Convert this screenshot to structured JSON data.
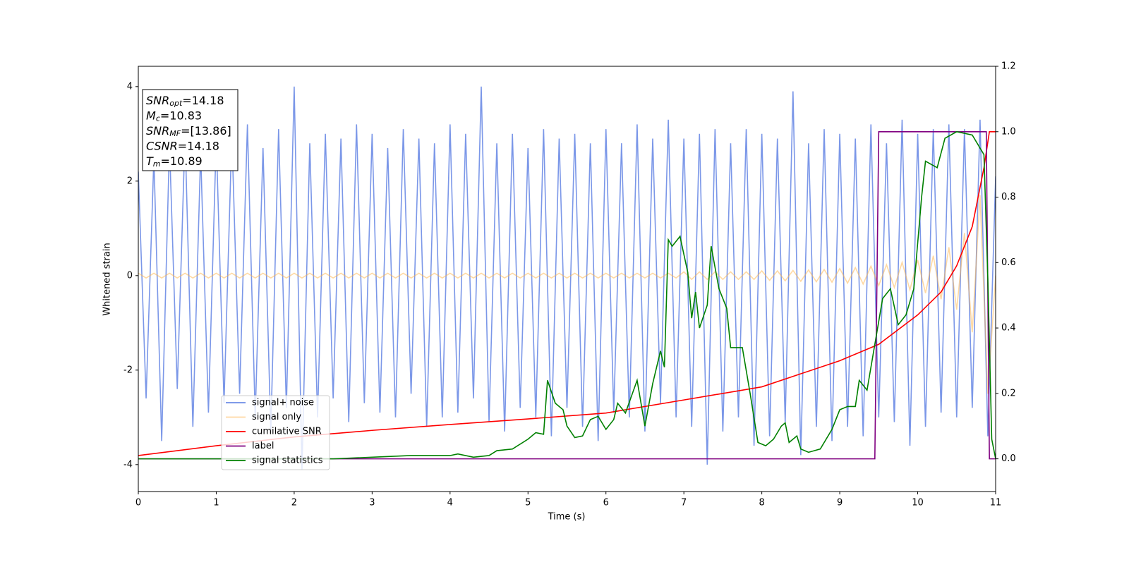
{
  "chart_data": {
    "type": "line",
    "xlabel": "Time (s)",
    "ylabel": "Whitened strain",
    "xlim": [
      0,
      11
    ],
    "xticks": [
      0,
      1,
      2,
      3,
      4,
      5,
      6,
      7,
      8,
      9,
      10,
      11
    ],
    "ylim": [
      -4.57,
      4.43
    ],
    "yticks": [
      -4,
      -2,
      0,
      2,
      4
    ],
    "y2lim": [
      -0.1,
      1.2
    ],
    "y2ticks": [
      {
        "value": 0,
        "label": "0.0"
      },
      {
        "value": 0.2,
        "label": "0.2"
      },
      {
        "value": 0.4,
        "label": "0.4"
      },
      {
        "value": 0.6,
        "label": "0.6"
      },
      {
        "value": 0.8,
        "label": "0.8"
      },
      {
        "value": 1.0,
        "label": "1.0"
      },
      {
        "value": 1.2,
        "label": "1.2"
      }
    ],
    "legend": "lower left",
    "annotation": [
      {
        "var": "SNR",
        "sub": "opt",
        "text": "=14.18"
      },
      {
        "var": "M",
        "sub": "c",
        "text": "=10.83"
      },
      {
        "var": "SNR",
        "sub": "MF",
        "text": "=[13.86]"
      },
      {
        "var": "CSNR",
        "text": "=14.18"
      },
      {
        "var": "T",
        "sub": "m",
        "text": "=10.89"
      }
    ],
    "series": [
      {
        "name": "signal+ noise",
        "color": "#6d8ce6",
        "x": [
          0,
          0.1,
          0.2,
          0.3,
          0.4,
          0.5,
          0.6,
          0.7,
          0.8,
          0.9,
          1,
          1.1,
          1.2,
          1.3,
          1.4,
          1.5,
          1.6,
          1.7,
          1.8,
          1.9,
          2,
          2.1,
          2.2,
          2.3,
          2.4,
          2.5,
          2.6,
          2.7,
          2.8,
          2.9,
          3,
          3.1,
          3.2,
          3.3,
          3.4,
          3.5,
          3.6,
          3.7,
          3.8,
          3.9,
          4,
          4.1,
          4.2,
          4.3,
          4.4,
          4.5,
          4.6,
          4.7,
          4.8,
          4.9,
          5,
          5.1,
          5.2,
          5.3,
          5.4,
          5.5,
          5.6,
          5.7,
          5.8,
          5.9,
          6,
          6.1,
          6.2,
          6.3,
          6.4,
          6.5,
          6.6,
          6.7,
          6.8,
          6.9,
          7,
          7.1,
          7.2,
          7.3,
          7.4,
          7.5,
          7.6,
          7.7,
          7.8,
          7.9,
          8,
          8.1,
          8.2,
          8.3,
          8.4,
          8.5,
          8.6,
          8.7,
          8.8,
          8.9,
          9,
          9.1,
          9.2,
          9.3,
          9.4,
          9.5,
          9.6,
          9.7,
          9.8,
          9.9,
          10,
          10.1,
          10.2,
          10.3,
          10.4,
          10.5,
          10.6,
          10.7,
          10.8,
          10.9,
          11
        ],
        "values": [
          2.2,
          -2.6,
          2.5,
          -3.5,
          2.8,
          -2.4,
          3.0,
          -3.2,
          2.6,
          -2.9,
          2.9,
          -2.7,
          3.0,
          -2.5,
          3.2,
          -3.0,
          2.7,
          -3.3,
          3.1,
          -2.8,
          4.0,
          -4.1,
          2.8,
          -3.0,
          3.0,
          -2.6,
          2.9,
          -3.1,
          3.2,
          -2.7,
          3.0,
          -2.9,
          2.7,
          -3.0,
          3.1,
          -2.5,
          2.9,
          -3.2,
          2.8,
          -3.0,
          3.2,
          -2.9,
          3.0,
          -2.6,
          4.0,
          -3.1,
          2.8,
          -3.3,
          3.0,
          -2.8,
          2.7,
          -3.0,
          3.1,
          -3.4,
          2.9,
          -2.8,
          3.0,
          -3.2,
          2.8,
          -3.5,
          3.1,
          -2.9,
          2.8,
          -3.0,
          3.2,
          -3.3,
          2.9,
          -2.7,
          3.3,
          -3.0,
          2.9,
          -3.2,
          3.0,
          -4.0,
          3.1,
          -3.3,
          2.8,
          -3.0,
          3.1,
          -3.6,
          3.0,
          -3.4,
          2.9,
          -3.1,
          3.9,
          -3.8,
          2.8,
          -3.2,
          3.1,
          -3.5,
          3.0,
          -3.2,
          2.9,
          -3.4,
          3.2,
          -3.0,
          2.8,
          -3.1,
          3.3,
          -3.6,
          3.0,
          -3.2,
          3.1,
          -2.9,
          3.2,
          -3.0,
          3.1,
          -2.8,
          3.3,
          -3.4,
          2.1
        ]
      },
      {
        "name": "signal only",
        "color": "#ffb347",
        "x": [
          0,
          0.1,
          0.2,
          0.3,
          0.4,
          0.5,
          0.6,
          0.7,
          0.8,
          0.9,
          1,
          1.1,
          1.2,
          1.3,
          1.4,
          1.5,
          1.6,
          1.7,
          1.8,
          1.9,
          2,
          2.1,
          2.2,
          2.3,
          2.4,
          2.5,
          2.6,
          2.7,
          2.8,
          2.9,
          3,
          3.1,
          3.2,
          3.3,
          3.4,
          3.5,
          3.6,
          3.7,
          3.8,
          3.9,
          4,
          4.1,
          4.2,
          4.3,
          4.4,
          4.5,
          4.6,
          4.7,
          4.8,
          4.9,
          5,
          5.1,
          5.2,
          5.3,
          5.4,
          5.5,
          5.6,
          5.7,
          5.8,
          5.9,
          6,
          6.1,
          6.2,
          6.3,
          6.4,
          6.5,
          6.6,
          6.7,
          6.8,
          6.9,
          7,
          7.1,
          7.2,
          7.3,
          7.4,
          7.5,
          7.6,
          7.7,
          7.8,
          7.9,
          8,
          8.1,
          8.2,
          8.3,
          8.4,
          8.5,
          8.6,
          8.7,
          8.8,
          8.9,
          9,
          9.1,
          9.2,
          9.3,
          9.4,
          9.5,
          9.6,
          9.7,
          9.8,
          9.9,
          10,
          10.1,
          10.2,
          10.3,
          10.4,
          10.5,
          10.6,
          10.7,
          10.8,
          10.9,
          11
        ],
        "values": [
          0.05,
          -0.05,
          0.05,
          -0.05,
          0.05,
          -0.05,
          0.05,
          -0.05,
          0.05,
          -0.05,
          0.05,
          -0.05,
          0.05,
          -0.05,
          0.05,
          -0.05,
          0.05,
          -0.05,
          0.05,
          -0.05,
          0.05,
          -0.05,
          0.05,
          -0.05,
          0.05,
          -0.05,
          0.05,
          -0.05,
          0.05,
          -0.05,
          0.05,
          -0.05,
          0.05,
          -0.05,
          0.05,
          -0.05,
          0.05,
          -0.05,
          0.05,
          -0.05,
          0.05,
          -0.05,
          0.05,
          -0.05,
          0.05,
          -0.05,
          0.05,
          -0.05,
          0.05,
          -0.05,
          0.05,
          -0.05,
          0.05,
          -0.05,
          0.05,
          -0.05,
          0.05,
          -0.05,
          0.05,
          -0.05,
          0.05,
          -0.05,
          0.05,
          -0.05,
          0.05,
          -0.05,
          0.05,
          -0.05,
          0.05,
          -0.05,
          0.08,
          -0.08,
          0.08,
          -0.08,
          0.08,
          -0.08,
          0.08,
          -0.08,
          0.08,
          -0.08,
          0.1,
          -0.1,
          0.1,
          -0.11,
          0.11,
          -0.12,
          0.12,
          -0.13,
          0.13,
          -0.14,
          0.15,
          -0.16,
          0.17,
          -0.18,
          0.2,
          -0.21,
          0.23,
          -0.25,
          0.28,
          -0.3,
          0.33,
          -0.37,
          0.42,
          -0.5,
          0.6,
          -0.72,
          0.9,
          -1.2,
          1.7,
          -2.5,
          0
        ]
      },
      {
        "name": "cumilative SNR",
        "color": "#ff0000",
        "axis": "y2",
        "x": [
          0,
          1,
          2,
          3,
          4,
          5,
          6,
          7,
          8,
          9,
          9.5,
          10,
          10.3,
          10.5,
          10.7,
          10.85,
          10.92,
          11
        ],
        "values": [
          0.01,
          0.04,
          0.067,
          0.087,
          0.105,
          0.122,
          0.14,
          0.18,
          0.22,
          0.3,
          0.35,
          0.44,
          0.51,
          0.59,
          0.71,
          0.89,
          1.0,
          1.0
        ]
      },
      {
        "name": "label",
        "color": "#800080",
        "axis": "y2",
        "x": [
          0,
          9.45,
          9.5,
          10.88,
          10.92,
          11
        ],
        "values": [
          0,
          0,
          1,
          1,
          0,
          0
        ]
      },
      {
        "name": "signal statistics",
        "color": "#008000",
        "axis": "y2",
        "x": [
          0,
          2.5,
          3,
          3.5,
          4,
          4.1,
          4.3,
          4.5,
          4.6,
          4.8,
          5,
          5.1,
          5.2,
          5.25,
          5.35,
          5.45,
          5.5,
          5.6,
          5.7,
          5.8,
          5.9,
          6,
          6.1,
          6.15,
          6.25,
          6.4,
          6.5,
          6.6,
          6.7,
          6.75,
          6.8,
          6.85,
          6.95,
          7.05,
          7.1,
          7.15,
          7.2,
          7.3,
          7.35,
          7.45,
          7.55,
          7.6,
          7.75,
          7.85,
          7.95,
          8.05,
          8.15,
          8.25,
          8.3,
          8.35,
          8.45,
          8.5,
          8.6,
          8.75,
          8.9,
          9,
          9.1,
          9.2,
          9.25,
          9.35,
          9.45,
          9.55,
          9.65,
          9.75,
          9.85,
          9.95,
          10.05,
          10.1,
          10.25,
          10.35,
          10.5,
          10.7,
          10.85,
          10.9,
          10.95,
          11
        ],
        "values": [
          0,
          0,
          0.005,
          0.01,
          0.01,
          0.015,
          0.005,
          0.01,
          0.025,
          0.03,
          0.06,
          0.08,
          0.075,
          0.24,
          0.17,
          0.15,
          0.1,
          0.065,
          0.07,
          0.12,
          0.13,
          0.09,
          0.12,
          0.17,
          0.14,
          0.24,
          0.1,
          0.23,
          0.33,
          0.28,
          0.67,
          0.65,
          0.68,
          0.57,
          0.43,
          0.51,
          0.4,
          0.47,
          0.65,
          0.52,
          0.46,
          0.34,
          0.34,
          0.2,
          0.05,
          0.04,
          0.06,
          0.1,
          0.11,
          0.05,
          0.07,
          0.03,
          0.02,
          0.03,
          0.09,
          0.15,
          0.16,
          0.16,
          0.24,
          0.21,
          0.35,
          0.49,
          0.52,
          0.41,
          0.44,
          0.52,
          0.8,
          0.91,
          0.89,
          0.98,
          1.0,
          0.99,
          0.93,
          0.55,
          0.06,
          0.0
        ]
      }
    ]
  }
}
